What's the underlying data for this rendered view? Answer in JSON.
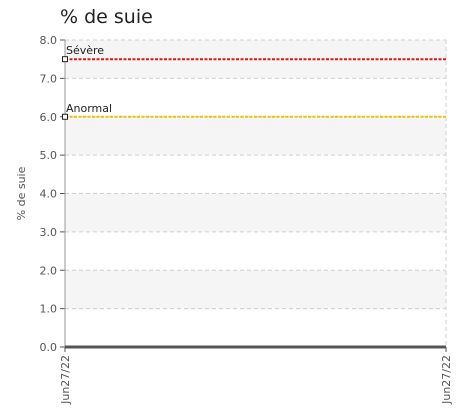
{
  "chart_data": {
    "type": "line",
    "title": "% de suie",
    "ylabel": "% de suie",
    "xlabel": "",
    "ylim": [
      0,
      8
    ],
    "yticks": [
      "0.0",
      "1.0",
      "2.0",
      "3.0",
      "4.0",
      "5.0",
      "6.0",
      "7.0",
      "8.0"
    ],
    "xticks": [
      "Jun27/22",
      "Jun27/22"
    ],
    "grid": true,
    "thresholds": [
      {
        "label": "Sévère",
        "value": 7.5,
        "color": "#e8141c"
      },
      {
        "label": "Anormal",
        "value": 6.0,
        "color": "#f2c200"
      }
    ],
    "series": [
      {
        "values": [
          0,
          0
        ],
        "color": "#555555"
      }
    ]
  }
}
